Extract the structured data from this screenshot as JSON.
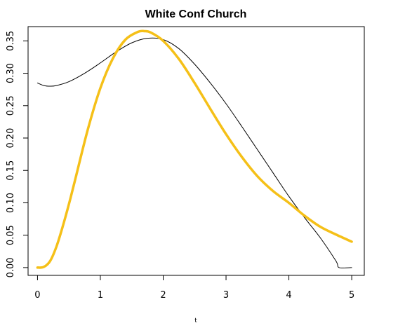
{
  "chart_data": {
    "type": "line",
    "title": "White Conf Church",
    "xlabel": "t",
    "ylabel": "",
    "xlim": [
      -0.15,
      5.2
    ],
    "ylim": [
      -0.012,
      0.372
    ],
    "x_ticks": [
      0,
      1,
      2,
      3,
      4,
      5
    ],
    "y_ticks": [
      0.0,
      0.05,
      0.1,
      0.15,
      0.2,
      0.25,
      0.3,
      0.35
    ],
    "x_tick_labels": [
      "0",
      "1",
      "2",
      "3",
      "4",
      "5"
    ],
    "y_tick_labels": [
      "0.00",
      "0.05",
      "0.10",
      "0.15",
      "0.20",
      "0.25",
      "0.30",
      "0.35"
    ],
    "grid": false,
    "series": [
      {
        "color": "#000000",
        "line_width": 1,
        "x": [
          0,
          0.1,
          0.2,
          0.3,
          0.5,
          0.75,
          1.0,
          1.25,
          1.5,
          1.75,
          2.0,
          2.25,
          2.5,
          2.75,
          3.0,
          3.25,
          3.5,
          3.75,
          4.0,
          4.25,
          4.5,
          4.75,
          4.8,
          5.0
        ],
        "y": [
          0.285,
          0.281,
          0.28,
          0.281,
          0.287,
          0.3,
          0.316,
          0.333,
          0.347,
          0.354,
          0.352,
          0.338,
          0.314,
          0.285,
          0.253,
          0.218,
          0.182,
          0.146,
          0.11,
          0.077,
          0.046,
          0.01,
          0.0,
          0.0
        ]
      },
      {
        "color": "#f5c018",
        "line_width": 3.5,
        "x": [
          0,
          0.1,
          0.2,
          0.3,
          0.4,
          0.5,
          0.6,
          0.8,
          1.0,
          1.2,
          1.4,
          1.6,
          1.7,
          1.8,
          2.0,
          2.25,
          2.5,
          2.75,
          3.0,
          3.25,
          3.5,
          3.75,
          4.0,
          4.25,
          4.5,
          4.75,
          5.0
        ],
        "y": [
          0.0,
          0.001,
          0.01,
          0.032,
          0.063,
          0.098,
          0.136,
          0.213,
          0.277,
          0.323,
          0.352,
          0.364,
          0.365,
          0.363,
          0.35,
          0.322,
          0.285,
          0.245,
          0.206,
          0.171,
          0.141,
          0.118,
          0.1,
          0.08,
          0.063,
          0.051,
          0.04
        ]
      }
    ]
  }
}
